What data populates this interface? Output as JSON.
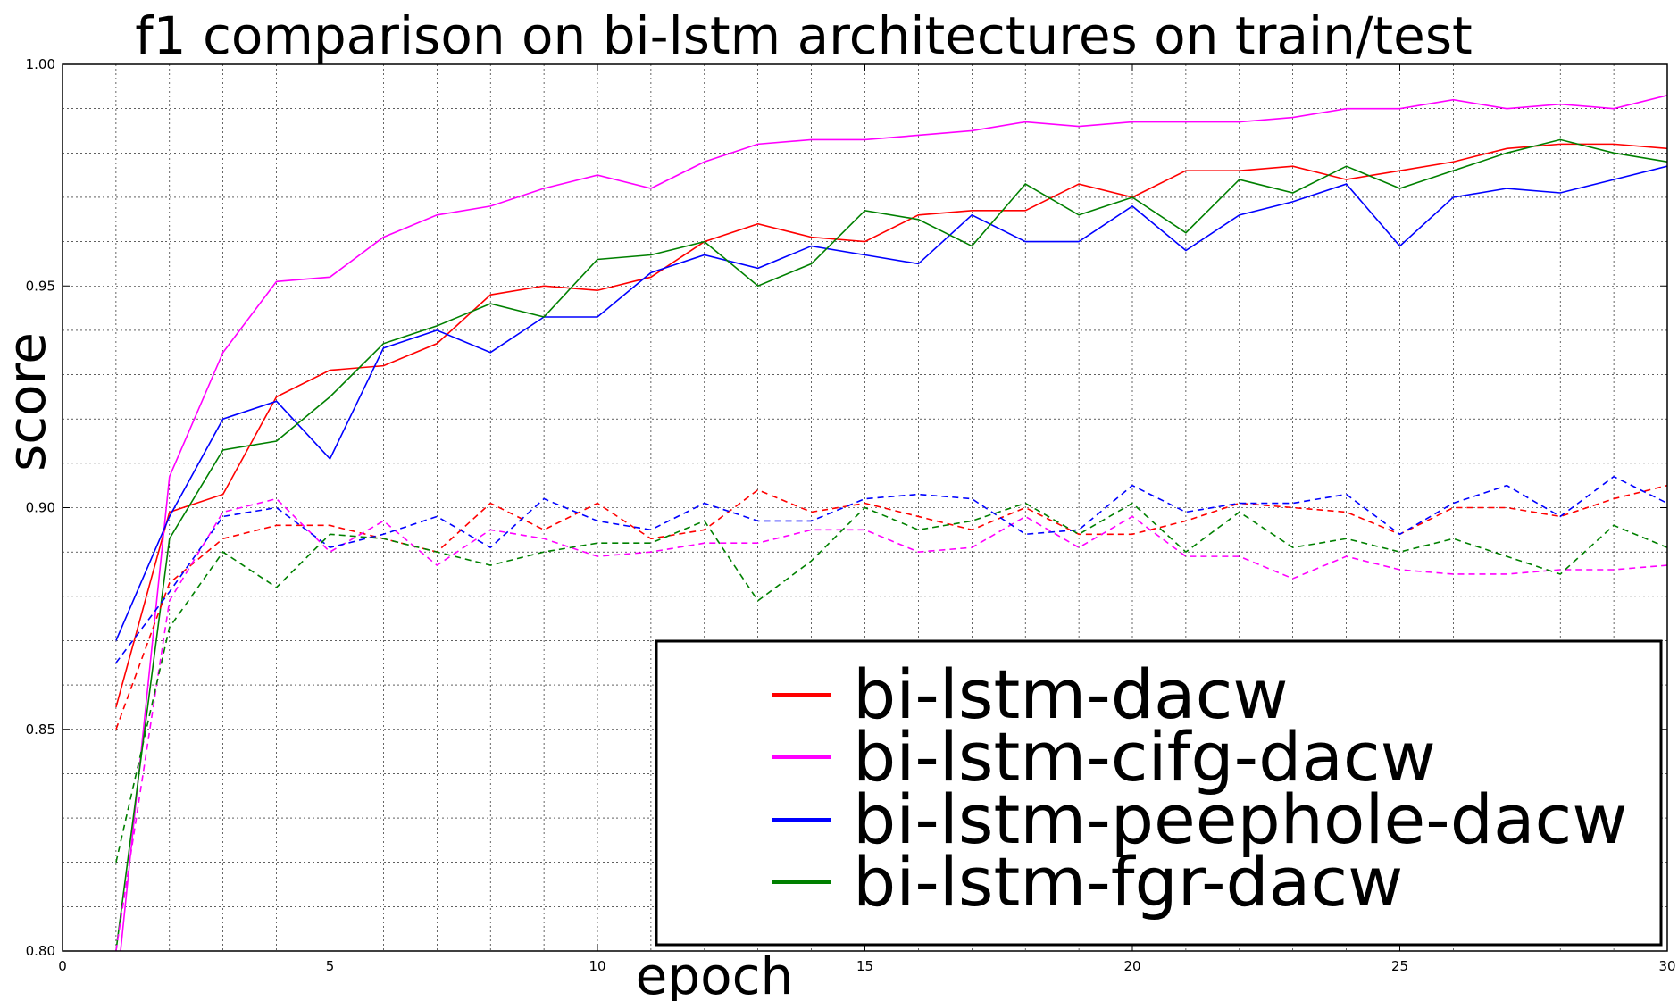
{
  "chart_data": {
    "type": "line",
    "title": "f1 comparison on bi-lstm architectures on train/test",
    "xlabel": "epoch",
    "ylabel": "score",
    "xlim": [
      0,
      30
    ],
    "ylim": [
      0.8,
      1.0
    ],
    "xticks": [
      0,
      5,
      10,
      15,
      20,
      25,
      30
    ],
    "xtick_labels": [
      "0",
      "5",
      "10",
      "15",
      "20",
      "25",
      "30"
    ],
    "yticks": [
      0.8,
      0.85,
      0.9,
      0.95,
      1.0
    ],
    "ytick_labels": [
      "0.80",
      "0.85",
      "0.90",
      "0.95",
      "1.00"
    ],
    "grid": true,
    "legend_position": "bottom-right",
    "x": [
      1,
      2,
      3,
      4,
      5,
      6,
      7,
      8,
      9,
      10,
      11,
      12,
      13,
      14,
      15,
      16,
      17,
      18,
      19,
      20,
      21,
      22,
      23,
      24,
      25,
      26,
      27,
      28,
      29,
      30
    ],
    "series": [
      {
        "name": "bi-lstm-dacw",
        "color": "#ff0000",
        "style": "solid",
        "values": [
          0.855,
          0.899,
          0.903,
          0.925,
          0.931,
          0.932,
          0.937,
          0.948,
          0.95,
          0.949,
          0.952,
          0.96,
          0.964,
          0.961,
          0.96,
          0.966,
          0.967,
          0.967,
          0.973,
          0.97,
          0.976,
          0.976,
          0.977,
          0.974,
          0.976,
          0.978,
          0.981,
          0.982,
          0.982,
          0.981
        ]
      },
      {
        "name": "bi-lstm-cifg-dacw",
        "color": "#ff00ff",
        "style": "solid",
        "values": [
          0.79,
          0.907,
          0.935,
          0.951,
          0.952,
          0.961,
          0.966,
          0.968,
          0.972,
          0.975,
          0.972,
          0.978,
          0.982,
          0.983,
          0.983,
          0.984,
          0.985,
          0.987,
          0.986,
          0.987,
          0.987,
          0.987,
          0.988,
          0.99,
          0.99,
          0.992,
          0.99,
          0.991,
          0.99,
          0.993
        ]
      },
      {
        "name": "bi-lstm-peephole-dacw",
        "color": "#0000ff",
        "style": "solid",
        "values": [
          0.87,
          0.898,
          0.92,
          0.924,
          0.911,
          0.936,
          0.94,
          0.935,
          0.943,
          0.943,
          0.953,
          0.957,
          0.954,
          0.959,
          0.957,
          0.955,
          0.966,
          0.96,
          0.96,
          0.968,
          0.958,
          0.966,
          0.969,
          0.973,
          0.959,
          0.97,
          0.972,
          0.971,
          0.974,
          0.977
        ]
      },
      {
        "name": "bi-lstm-fgr-dacw",
        "color": "#008000",
        "style": "solid",
        "values": [
          0.8,
          0.893,
          0.913,
          0.915,
          0.925,
          0.937,
          0.941,
          0.946,
          0.943,
          0.956,
          0.957,
          0.96,
          0.95,
          0.955,
          0.967,
          0.965,
          0.959,
          0.973,
          0.966,
          0.97,
          0.962,
          0.974,
          0.971,
          0.977,
          0.972,
          0.976,
          0.98,
          0.983,
          0.98,
          0.978
        ]
      },
      {
        "color": "#ff0000",
        "style": "dashed",
        "values": [
          0.85,
          0.883,
          0.893,
          0.896,
          0.896,
          0.893,
          0.89,
          0.901,
          0.895,
          0.901,
          0.893,
          0.895,
          0.904,
          0.899,
          0.901,
          0.898,
          0.895,
          0.9,
          0.894,
          0.894,
          0.897,
          0.901,
          0.9,
          0.899,
          0.894,
          0.9,
          0.9,
          0.898,
          0.902,
          0.905
        ]
      },
      {
        "color": "#ff00ff",
        "style": "dashed",
        "values": [
          0.8,
          0.879,
          0.899,
          0.902,
          0.89,
          0.897,
          0.887,
          0.895,
          0.893,
          0.889,
          0.89,
          0.892,
          0.892,
          0.895,
          0.895,
          0.89,
          0.891,
          0.898,
          0.891,
          0.898,
          0.889,
          0.889,
          0.884,
          0.889,
          0.886,
          0.885,
          0.885,
          0.886,
          0.886,
          0.887
        ]
      },
      {
        "color": "#0000ff",
        "style": "dashed",
        "values": [
          0.865,
          0.881,
          0.898,
          0.9,
          0.891,
          0.894,
          0.898,
          0.891,
          0.902,
          0.897,
          0.895,
          0.901,
          0.897,
          0.897,
          0.902,
          0.903,
          0.902,
          0.894,
          0.895,
          0.905,
          0.899,
          0.901,
          0.901,
          0.903,
          0.894,
          0.901,
          0.905,
          0.898,
          0.907,
          0.901
        ]
      },
      {
        "color": "#008000",
        "style": "dashed",
        "values": [
          0.82,
          0.873,
          0.89,
          0.882,
          0.894,
          0.893,
          0.89,
          0.887,
          0.89,
          0.892,
          0.892,
          0.897,
          0.879,
          0.888,
          0.9,
          0.895,
          0.897,
          0.901,
          0.894,
          0.901,
          0.89,
          0.899,
          0.891,
          0.893,
          0.89,
          0.893,
          0.889,
          0.885,
          0.896,
          0.891
        ]
      }
    ]
  }
}
